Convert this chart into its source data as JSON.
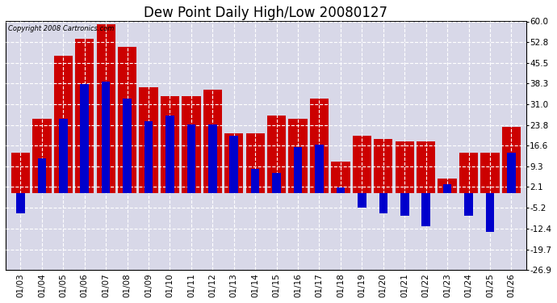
{
  "title": "Dew Point Daily High/Low 20080127",
  "copyright": "Copyright 2008 Cartronics.com",
  "dates": [
    "01/03",
    "01/04",
    "01/05",
    "01/06",
    "01/07",
    "01/08",
    "01/09",
    "01/10",
    "01/11",
    "01/12",
    "01/13",
    "01/14",
    "01/15",
    "01/16",
    "01/17",
    "01/18",
    "01/19",
    "01/20",
    "01/21",
    "01/22",
    "01/23",
    "01/24",
    "01/25",
    "01/26"
  ],
  "highs": [
    14.0,
    26.0,
    48.0,
    54.0,
    59.0,
    51.0,
    37.0,
    34.0,
    34.0,
    36.0,
    21.0,
    21.0,
    27.0,
    26.0,
    33.0,
    11.0,
    20.0,
    19.0,
    18.0,
    18.0,
    5.0,
    14.0,
    14.0,
    23.0
  ],
  "lows": [
    -7.0,
    12.0,
    26.0,
    38.0,
    39.0,
    33.0,
    25.0,
    27.0,
    24.0,
    24.0,
    20.0,
    8.5,
    7.0,
    16.0,
    17.0,
    2.0,
    -5.0,
    -7.0,
    -8.0,
    -11.5,
    3.0,
    -8.0,
    -13.5,
    14.0
  ],
  "high_color": "#cc0000",
  "low_color": "#0000cc",
  "bg_color": "#ffffff",
  "plot_bg_color": "#d8d8e8",
  "grid_color": "#ffffff",
  "ymin": -26.9,
  "ymax": 60.0,
  "yticks": [
    -26.9,
    -19.7,
    -12.4,
    -5.2,
    2.1,
    9.3,
    16.6,
    23.8,
    31.0,
    38.3,
    45.5,
    52.8,
    60.0
  ],
  "bar_width": 0.4,
  "title_fontsize": 12,
  "tick_fontsize": 7.5,
  "figsize": [
    6.9,
    3.75
  ],
  "dpi": 100
}
